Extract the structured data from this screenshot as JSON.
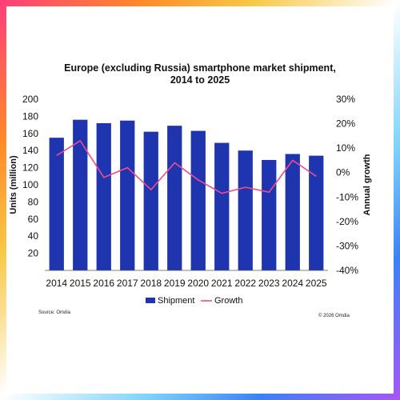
{
  "title_line1": "Europe (excluding Russia) smartphone market shipment,",
  "title_line2": "2014 to 2025",
  "source": "Source: Omdia",
  "copyright": "© 2026 Omdia",
  "colors": {
    "bar": "#1f35b0",
    "line": "#ee4d8a"
  },
  "chart_data": {
    "type": "bar",
    "categories": [
      "2014",
      "2015",
      "2016",
      "2017",
      "2018",
      "2019",
      "2020",
      "2021",
      "2022",
      "2023",
      "2024",
      "2025"
    ],
    "series": [
      {
        "name": "Shipment",
        "type": "bar",
        "axis": "left",
        "values": [
          155,
          176,
          172,
          175,
          162,
          169,
          163,
          149,
          140,
          129,
          136,
          134
        ]
      },
      {
        "name": "Growth",
        "type": "line",
        "axis": "right",
        "values": [
          7,
          13,
          -2,
          2,
          -7,
          4,
          -3,
          -8.5,
          -6,
          -8,
          5,
          -1.5
        ]
      }
    ],
    "ylabel": "Units (million)",
    "ylabel_right": "Annual growth",
    "ylim": [
      0,
      200
    ],
    "yticks": [
      20,
      40,
      60,
      80,
      100,
      120,
      140,
      160,
      180,
      200
    ],
    "ylim_right": [
      -40,
      30
    ],
    "yticks_right": [
      "-40%",
      "-30%",
      "-20%",
      "-10%",
      "0%",
      "10%",
      "20%",
      "30%"
    ],
    "legend_position": "bottom",
    "grid": false
  }
}
